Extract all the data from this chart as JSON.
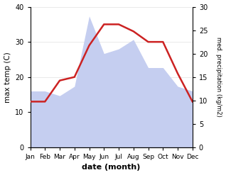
{
  "months": [
    "Jan",
    "Feb",
    "Mar",
    "Apr",
    "May",
    "Jun",
    "Jul",
    "Aug",
    "Sep",
    "Oct",
    "Nov",
    "Dec"
  ],
  "temperature": [
    13,
    13,
    19,
    20,
    29,
    35,
    35,
    33,
    30,
    30,
    21,
    13
  ],
  "precipitation": [
    12,
    12,
    11,
    13,
    28,
    20,
    21,
    23,
    17,
    17,
    13,
    12
  ],
  "temp_color": "#cc2222",
  "precip_color": "#c5cef0",
  "temp_ylim": [
    0,
    40
  ],
  "precip_ylim": [
    0,
    30
  ],
  "temp_yticks": [
    0,
    10,
    20,
    30,
    40
  ],
  "precip_yticks": [
    0,
    5,
    10,
    15,
    20,
    25,
    30
  ],
  "xlabel": "date (month)",
  "ylabel_left": "max temp (C)",
  "ylabel_right": "med. precipitation (kg/m2)"
}
